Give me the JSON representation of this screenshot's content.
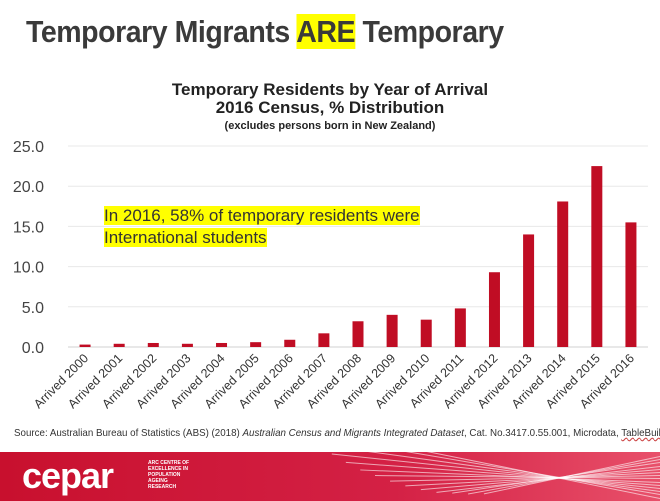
{
  "title": {
    "pre": "Temporary Migrants ",
    "highlight": "ARE",
    "post": " Temporary"
  },
  "note": {
    "line1": "In 2016, 58% of temporary residents were",
    "line2": "International students"
  },
  "source": {
    "pre": "Source: Australian Bureau of Statistics (ABS) (2018) ",
    "italic": "Australian Census and Migrants Integrated Dataset",
    "mid": ", Cat. No.3417.0.55.001, Microdata, ",
    "link": "TableBuilder"
  },
  "logo": {
    "name": "cepar",
    "sub": [
      "ARC CENTRE OF",
      "EXCELLENCE IN",
      "POPULATION",
      "AGEING",
      "RESEARCH"
    ]
  },
  "colors": {
    "bar": "#c00d24",
    "footer": "#c8102e",
    "highlight": "#ffff00"
  },
  "chart_data": {
    "type": "bar",
    "title": "Temporary Residents by Year of Arrival",
    "subtitle": "2016 Census, % Distribution",
    "note": "(excludes persons born in New Zealand)",
    "xlabel": "",
    "ylabel": "",
    "ylim": [
      0,
      25
    ],
    "yticks": [
      "0.0",
      "5.0",
      "10.0",
      "15.0",
      "20.0",
      "25.0"
    ],
    "grid": true,
    "categories": [
      "Arrived 2000",
      "Arrived 2001",
      "Arrived 2002",
      "Arrived 2003",
      "Arrived 2004",
      "Arrived 2005",
      "Arrived 2006",
      "Arrived 2007",
      "Arrived 2008",
      "Arrived 2009",
      "Arrived 2010",
      "Arrived 2011",
      "Arrived 2012",
      "Arrived 2013",
      "Arrived 2014",
      "Arrived 2015",
      "Arrived 2016"
    ],
    "values": [
      0.3,
      0.4,
      0.5,
      0.4,
      0.5,
      0.6,
      0.9,
      1.7,
      3.2,
      4.0,
      3.4,
      4.8,
      9.3,
      14.0,
      18.1,
      22.5,
      15.5
    ]
  }
}
